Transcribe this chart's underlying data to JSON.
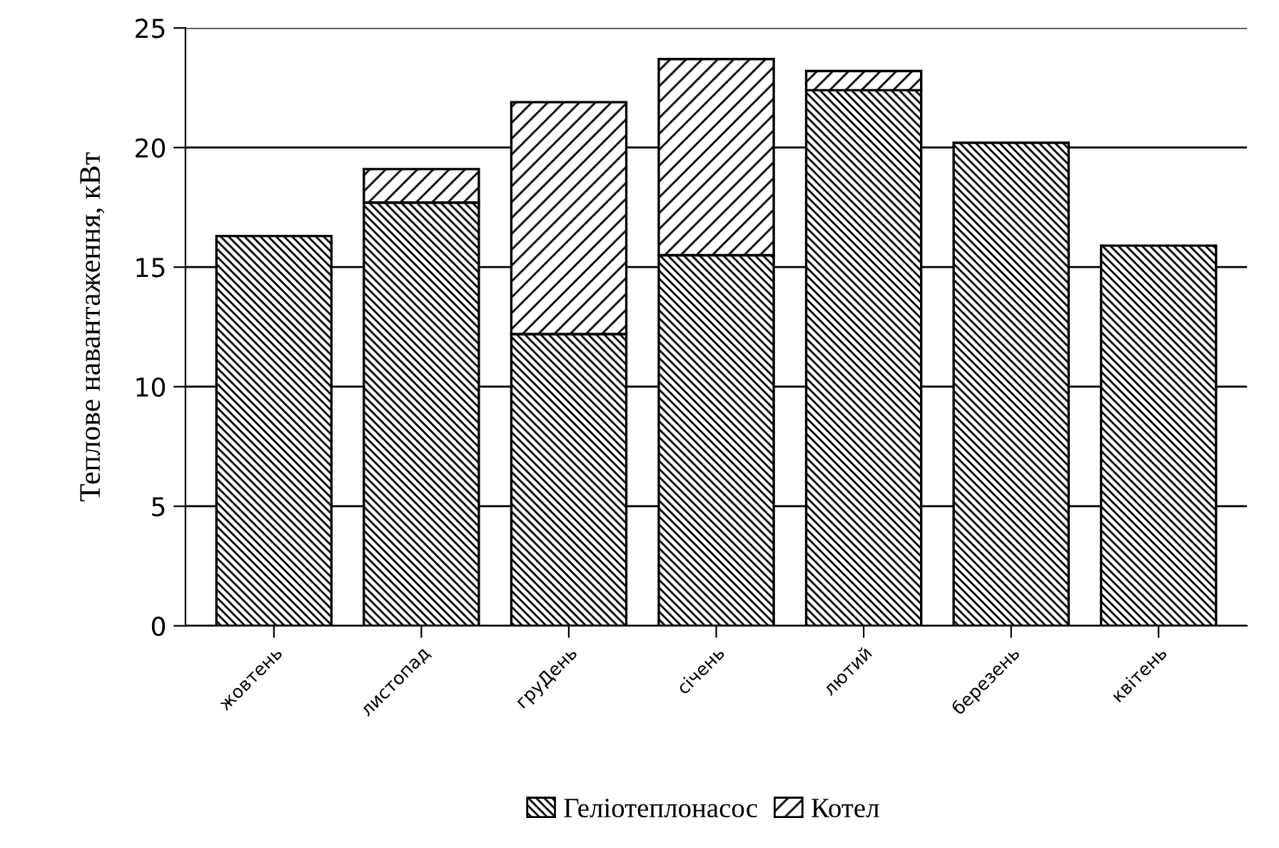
{
  "chart_data": {
    "type": "bar",
    "stacked": true,
    "ylabel": "Теплове навантаження, кВт",
    "categories": [
      "жовтень",
      "листопад",
      "груДень",
      "січень",
      "лютий",
      "березень",
      "квітень"
    ],
    "series": [
      {
        "name": "Геліотеплонасос",
        "color": "#000000",
        "values": [
          16.3,
          17.7,
          12.2,
          15.5,
          22.4,
          20.2,
          15.9
        ]
      },
      {
        "name": "Котел",
        "color": "#000000",
        "values": [
          null,
          1.4,
          9.7,
          8.2,
          0.8,
          null,
          null
        ]
      }
    ],
    "ylim": [
      0,
      25
    ],
    "yticks": [
      0,
      5,
      10,
      15,
      20,
      25
    ],
    "grid": "y",
    "legend": "bottom"
  }
}
